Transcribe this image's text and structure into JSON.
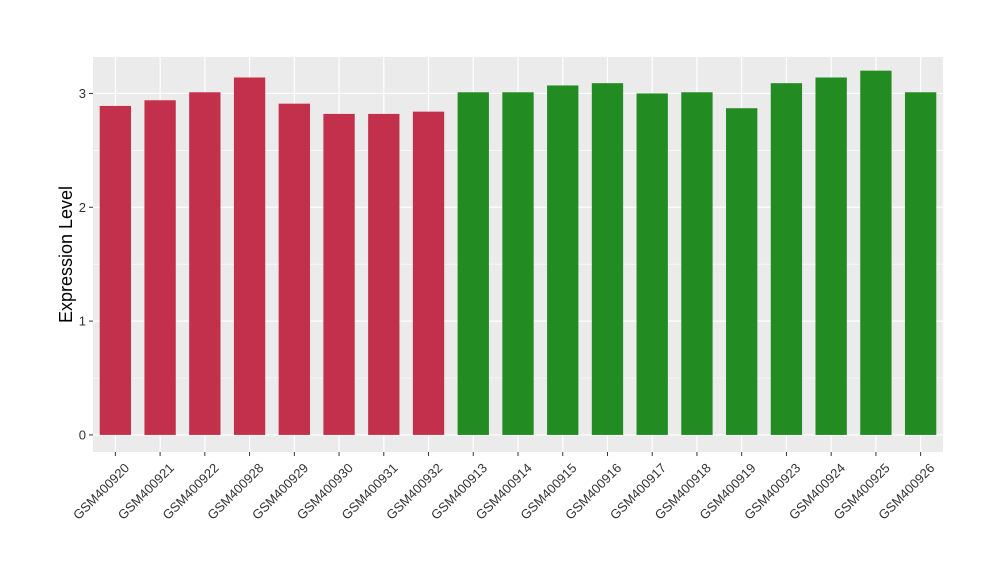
{
  "chart_data": {
    "type": "bar",
    "title": "",
    "xlabel": "",
    "ylabel": "Expression Level",
    "ylim": [
      -0.15,
      3.32
    ],
    "yticks": [
      0,
      1,
      2,
      3
    ],
    "grid": true,
    "panel_background": "#ebebeb",
    "categories": [
      "GSM400920",
      "GSM400921",
      "GSM400922",
      "GSM400928",
      "GSM400929",
      "GSM400930",
      "GSM400931",
      "GSM400932",
      "GSM400913",
      "GSM400914",
      "GSM400915",
      "GSM400916",
      "GSM400917",
      "GSM400918",
      "GSM400919",
      "GSM400923",
      "GSM400924",
      "GSM400925",
      "GSM400926"
    ],
    "values": [
      2.89,
      2.94,
      3.01,
      3.14,
      2.91,
      2.82,
      2.82,
      2.84,
      3.01,
      3.01,
      3.07,
      3.09,
      3.0,
      3.01,
      2.87,
      3.09,
      3.14,
      3.2,
      3.01
    ],
    "groups": [
      "a",
      "a",
      "a",
      "a",
      "a",
      "a",
      "a",
      "a",
      "b",
      "b",
      "b",
      "b",
      "b",
      "b",
      "b",
      "b",
      "b",
      "b",
      "b"
    ],
    "group_colors": {
      "a": "#c3304b",
      "b": "#228b22"
    }
  }
}
